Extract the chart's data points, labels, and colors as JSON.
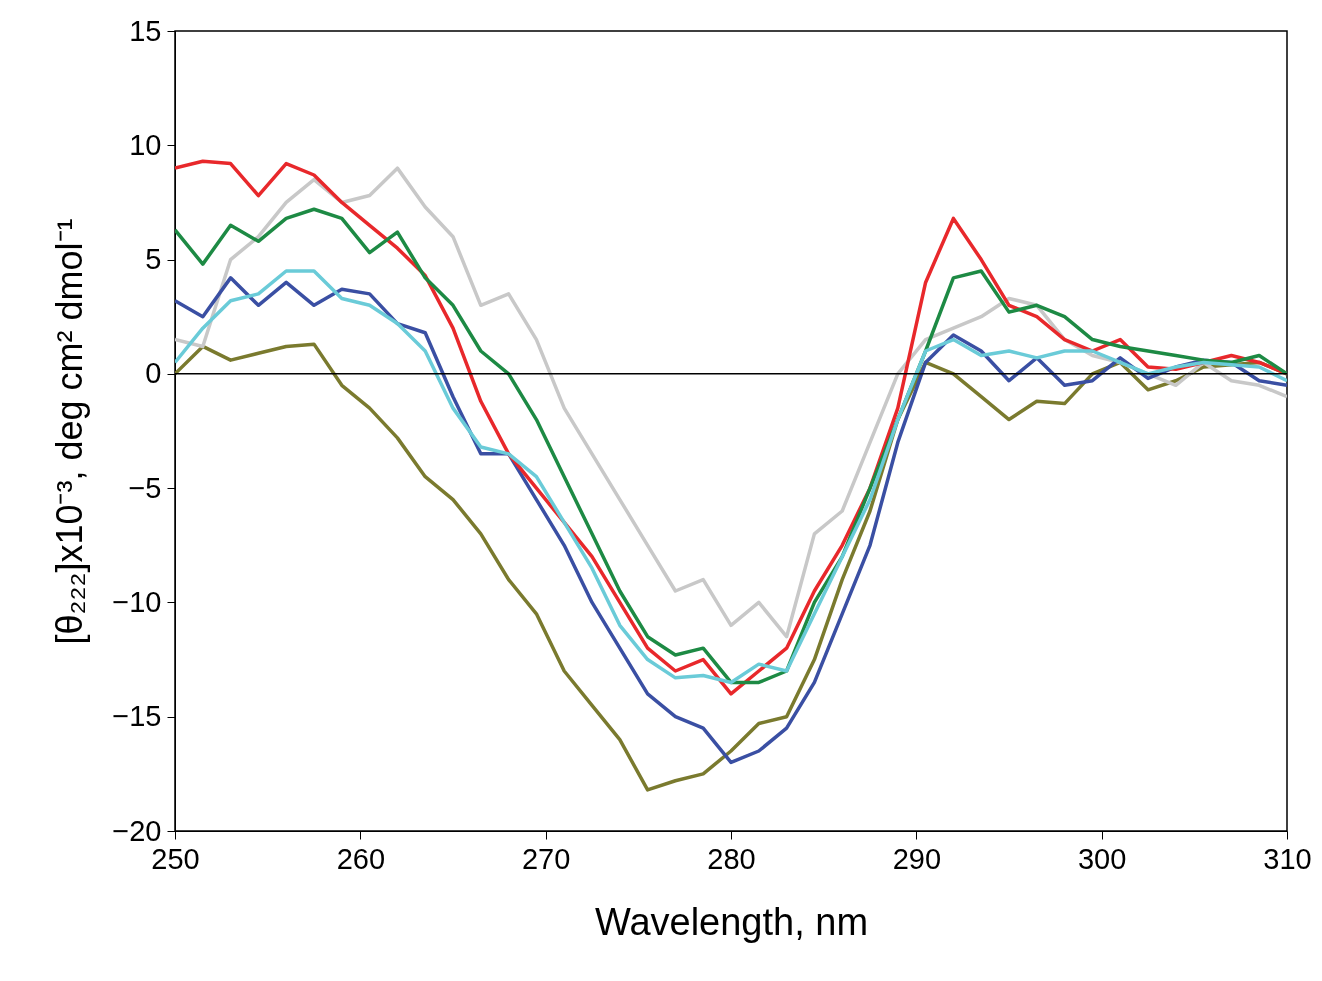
{
  "chart_data": {
    "type": "line",
    "xlabel": "Wavelength, nm",
    "ylabel": "[θ₂₂₂]x10⁻³, deg cm² dmol⁻¹",
    "xlim": [
      250,
      310
    ],
    "ylim": [
      -20,
      15
    ],
    "xticks": [
      250,
      260,
      270,
      280,
      290,
      300,
      310
    ],
    "yticks": [
      -20,
      -15,
      -10,
      -5,
      0,
      5,
      10,
      15
    ],
    "ref_lines": [
      {
        "axis": "y",
        "value": 0,
        "color": "#000000"
      }
    ],
    "x": [
      250,
      251.5,
      253,
      254.5,
      256,
      257.5,
      259,
      260.5,
      262,
      263.5,
      265,
      266.5,
      268,
      269.5,
      271,
      272.5,
      274,
      275.5,
      277,
      278.5,
      280,
      281.5,
      283,
      284.5,
      286,
      287.5,
      289,
      290.5,
      292,
      293.5,
      295,
      296.5,
      298,
      299.5,
      301,
      302.5,
      304,
      305.5,
      307,
      308.5,
      310
    ],
    "series": [
      {
        "color": "#7a7a2e",
        "values": [
          0,
          1.2,
          0.6,
          0.9,
          1.2,
          1.3,
          -0.5,
          -1.5,
          -2.8,
          -4.5,
          -5.5,
          -7,
          -9,
          -10.5,
          -13,
          -14.5,
          -16,
          -18.2,
          -17.8,
          -17.5,
          -16.5,
          -15.3,
          -15,
          -12.5,
          -9,
          -6,
          -2,
          0.5,
          0,
          -1,
          -2,
          -1.2,
          -1.3,
          0,
          0.5,
          -0.7,
          -0.3,
          0.3,
          0.4,
          0.5,
          0
        ]
      },
      {
        "color": "#c8c8c8",
        "values": [
          1.5,
          1.2,
          5,
          6,
          7.5,
          8.5,
          7.5,
          7.8,
          9,
          7.3,
          6,
          3,
          3.5,
          1.5,
          -1.5,
          -3.5,
          -5.5,
          -7.5,
          -9.5,
          -9,
          -11,
          -10,
          -11.5,
          -7,
          -6,
          -3,
          0,
          1.5,
          2,
          2.5,
          3.3,
          3,
          1.5,
          0.8,
          0.5,
          0,
          -0.5,
          0.5,
          -0.3,
          -0.5,
          -1
        ]
      },
      {
        "color": "#3a4fa3",
        "values": [
          3.2,
          2.5,
          4.2,
          3,
          4,
          3,
          3.7,
          3.5,
          2.2,
          1.8,
          -1,
          -3.5,
          -3.5,
          -5.5,
          -7.5,
          -10,
          -12,
          -14,
          -15,
          -15.5,
          -17,
          -16.5,
          -15.5,
          -13.5,
          -10.5,
          -7.5,
          -3,
          0.5,
          1.7,
          1,
          -0.3,
          0.7,
          -0.5,
          -0.3,
          0.7,
          -0.2,
          0.3,
          0.6,
          0.5,
          -0.3,
          -0.5
        ]
      },
      {
        "color": "#e8282b",
        "values": [
          9,
          9.3,
          9.2,
          7.8,
          9.2,
          8.7,
          7.5,
          6.5,
          5.5,
          4.3,
          2,
          -1.2,
          -3.5,
          -5,
          -6.5,
          -8,
          -10,
          -12,
          -13,
          -12.5,
          -14,
          -13,
          -12,
          -9.5,
          -7.5,
          -5,
          -1.5,
          4,
          6.8,
          5,
          3,
          2.5,
          1.5,
          1,
          1.5,
          0.3,
          0.2,
          0.5,
          0.8,
          0.5,
          0
        ]
      },
      {
        "color": "#1d8a44",
        "values": [
          6.3,
          4.8,
          6.5,
          5.8,
          6.8,
          7.2,
          6.8,
          5.3,
          6.2,
          4.2,
          3,
          1,
          0,
          -2,
          -4.5,
          -7,
          -9.5,
          -11.5,
          -12.3,
          -12,
          -13.5,
          -13.5,
          -13,
          -10,
          -8,
          -5,
          -2,
          1,
          4.2,
          4.5,
          2.7,
          3,
          2.5,
          1.5,
          1.2,
          1,
          0.8,
          0.6,
          0.5,
          0.8,
          0
        ]
      },
      {
        "color": "#6acbd8",
        "values": [
          0.5,
          2,
          3.2,
          3.5,
          4.5,
          4.5,
          3.3,
          3,
          2.2,
          1,
          -1.5,
          -3.2,
          -3.5,
          -4.5,
          -6.5,
          -8.5,
          -11,
          -12.5,
          -13.3,
          -13.2,
          -13.5,
          -12.7,
          -13,
          -10.5,
          -8,
          -5.5,
          -2,
          1,
          1.5,
          0.8,
          1,
          0.7,
          1,
          1,
          0.5,
          0,
          0.3,
          0.5,
          0.4,
          0.3,
          -0.3
        ]
      }
    ]
  }
}
